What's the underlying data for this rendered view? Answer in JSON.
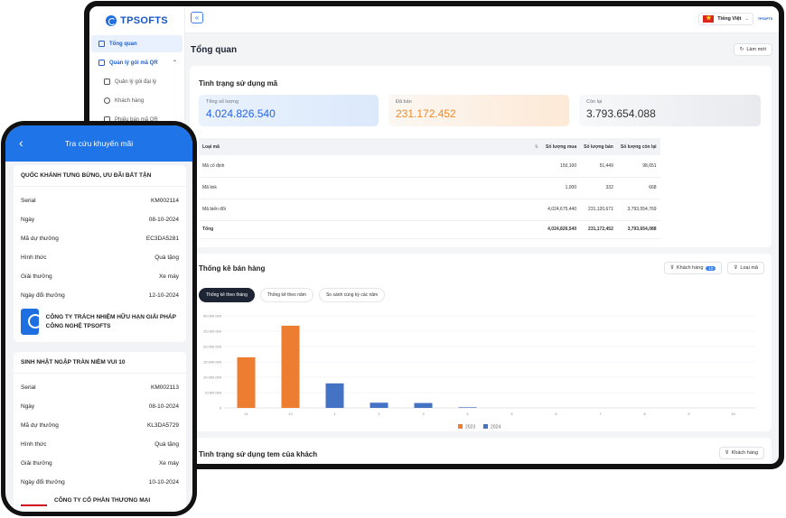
{
  "app": {
    "logo_text": "TPSOFTS",
    "lang_label": "Tiếng Việt",
    "user_logo_text": "TPSOFTS"
  },
  "sidebar": {
    "items": [
      {
        "label": "Tổng quan",
        "active": true
      },
      {
        "label": "Quản lý gói mã QR",
        "expanded": true
      },
      {
        "label": "Quản lý gói đại lý"
      },
      {
        "label": "Khách hàng"
      },
      {
        "label": "Phiếu bán mã QR"
      }
    ]
  },
  "header": {
    "title": "Tổng quan",
    "refresh_label": "Làm mới"
  },
  "usage": {
    "title": "Tình trạng sử dụng mã",
    "stats": [
      {
        "label": "Tổng số lượng",
        "value": "4.024.826.540",
        "color": "#2563eb"
      },
      {
        "label": "Đã bán",
        "value": "231.172.452",
        "color": "#f08a24"
      },
      {
        "label": "Còn lại",
        "value": "3.793.654.088",
        "color": "#333333"
      }
    ],
    "columns": [
      "Loại mã",
      "Số lượng mua",
      "Số lượng bán",
      "Số lượng còn lại"
    ],
    "rows": [
      [
        "Mã cố định",
        "150,100",
        "51,449",
        "98,651"
      ],
      [
        "Mã link",
        "1,000",
        "332",
        "668"
      ],
      [
        "Mã biến đổi",
        "4,024,675,440",
        "231,120,671",
        "3,793,554,769"
      ],
      [
        "Tổng",
        "4,024,826,540",
        "231,172,452",
        "3,793,654,088"
      ]
    ]
  },
  "sales": {
    "title": "Thống kê bán hàng",
    "filter_customer": "Khách hàng",
    "filter_count": "10",
    "filter_type": "Loại mã",
    "tabs": [
      "Thống kê theo tháng",
      "Thống kê theo năm",
      "So sánh cùng kỳ các năm"
    ]
  },
  "chart_data": {
    "type": "bar",
    "categories": [
      "11",
      "12",
      "1",
      "2",
      "3",
      "4",
      "5",
      "6",
      "7",
      "8",
      "9",
      "10"
    ],
    "series": [
      {
        "name": "2023",
        "color": "#ed7d31",
        "values": [
          16500000,
          26800000,
          0,
          0,
          0,
          0,
          0,
          0,
          0,
          0,
          0,
          0
        ]
      },
      {
        "name": "2024",
        "color": "#4472c4",
        "values": [
          0,
          0,
          8000000,
          1700000,
          1600000,
          200000,
          0,
          0,
          0,
          0,
          0,
          0
        ]
      }
    ],
    "ylim": [
      0,
      30000000
    ],
    "yticks": [
      "30.000.000",
      "25.000.000",
      "20.000.000",
      "15.000.000",
      "10.000.000",
      "5.000.000",
      "0"
    ],
    "legend_position": "bottom"
  },
  "customer_usage": {
    "title": "Tình trạng sử dụng tem của khách",
    "filter_label": "Khách hàng"
  },
  "phone": {
    "title": "Tra cứu khuyến mãi",
    "promos": [
      {
        "title": "QUỐC KHÁNH TƯNG BỪNG, ƯU ĐÃI BẤT TẬN",
        "rows": [
          [
            "Serial",
            "KM002114"
          ],
          [
            "Ngày",
            "08-10-2024"
          ],
          [
            "Mã dự thưởng",
            "EC3DA5281"
          ],
          [
            "Hình thức",
            "Quà tặng"
          ],
          [
            "Giải thưởng",
            "Xe máy"
          ],
          [
            "Ngày đổi thưởng",
            "12-10-2024"
          ]
        ],
        "company": "CÔNG TY TRÁCH NHIỆM HỮU HẠN GIẢI PHÁP CÔNG NGHỆ TPSOFTS"
      },
      {
        "title": "SINH NHẬT NGẬP TRÀN NIỀM VUI 10",
        "rows": [
          [
            "Serial",
            "KM002113"
          ],
          [
            "Ngày",
            "08-10-2024"
          ],
          [
            "Mã dự thưởng",
            "KL3DA5729"
          ],
          [
            "Hình thức",
            "Quà tặng"
          ],
          [
            "Giải thưởng",
            "Xe máy"
          ],
          [
            "Ngày đổi thưởng",
            "10-10-2024"
          ]
        ],
        "company": "CÔNG TY CỔ PHẦN THƯƠNG MẠI"
      }
    ]
  }
}
